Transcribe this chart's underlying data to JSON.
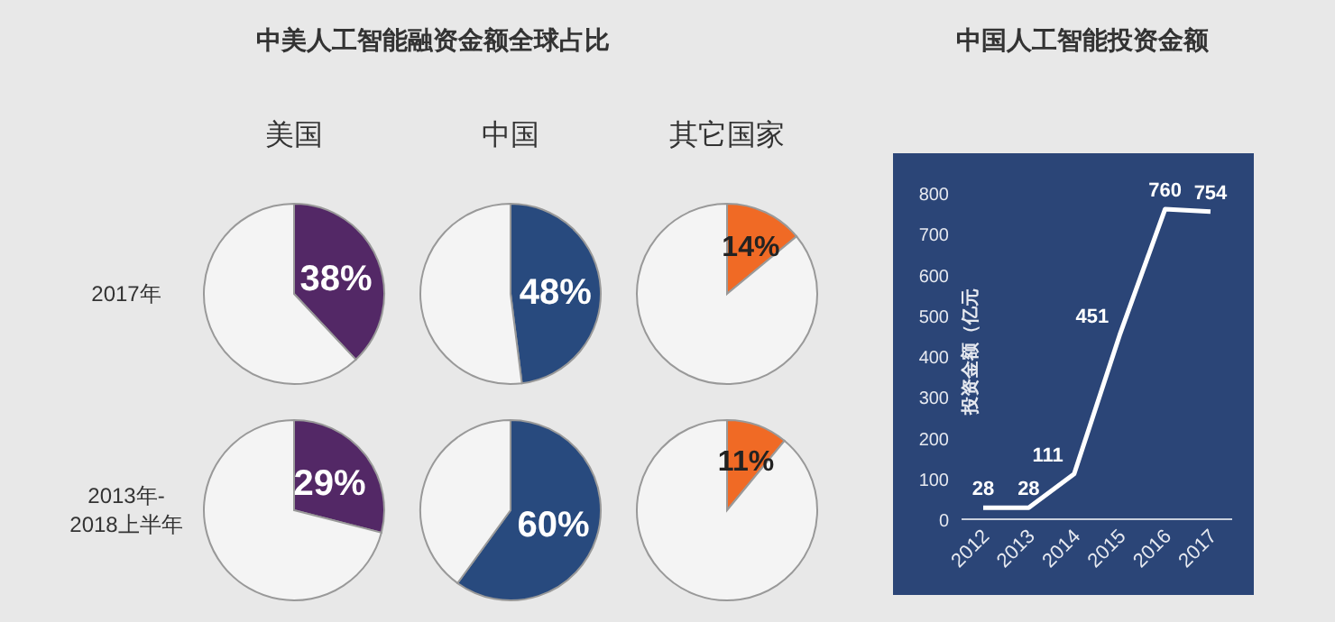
{
  "chart_data": [
    {
      "type": "other",
      "title": "中美人工智能融资金额全球占比",
      "annotations": [
        "2017年",
        "2013年-2018上半年"
      ]
    },
    {
      "type": "pie",
      "title": "美国",
      "categories": [
        null,
        null
      ],
      "values": [
        38,
        62
      ],
      "colors": [
        "#532866",
        "#f4f4f4"
      ],
      "value_labels": [
        "38%",
        null
      ]
    },
    {
      "type": "pie",
      "title": "中国",
      "categories": [
        null,
        null
      ],
      "values": [
        48,
        52
      ],
      "colors": [
        "#284a7e",
        "#f4f4f4"
      ],
      "value_labels": [
        "48%",
        null
      ]
    },
    {
      "type": "pie",
      "title": "其它国家",
      "categories": [
        null,
        null
      ],
      "values": [
        14,
        86
      ],
      "colors": [
        "#f06a25",
        "#f4f4f4"
      ],
      "value_labels": [
        "14%",
        null
      ]
    },
    {
      "type": "pie",
      "categories": [
        null,
        null
      ],
      "values": [
        29,
        71
      ],
      "colors": [
        "#532866",
        "#f4f4f4"
      ],
      "value_labels": [
        "29%",
        null
      ]
    },
    {
      "type": "pie",
      "categories": [
        null,
        null
      ],
      "values": [
        60,
        40
      ],
      "colors": [
        "#284a7e",
        "#f4f4f4"
      ],
      "value_labels": [
        "60%",
        null
      ]
    },
    {
      "type": "pie",
      "categories": [
        null,
        null
      ],
      "values": [
        11,
        89
      ],
      "colors": [
        "#f06a25",
        "#f4f4f4"
      ],
      "value_labels": [
        "11%",
        null
      ]
    },
    {
      "type": "line",
      "title": "中国人工智能投资金额",
      "ylabel": "投资金额（亿元",
      "categories": [
        "2012",
        "2013",
        "2014",
        "2015",
        "2016",
        "2017"
      ],
      "values": [
        28,
        28,
        111,
        451,
        760,
        754
      ],
      "color": "#ffffff",
      "ylim": [
        0,
        800
      ],
      "yticks": [
        0,
        100,
        200,
        300,
        400,
        500,
        600,
        700,
        800
      ],
      "data_labels": true
    }
  ]
}
